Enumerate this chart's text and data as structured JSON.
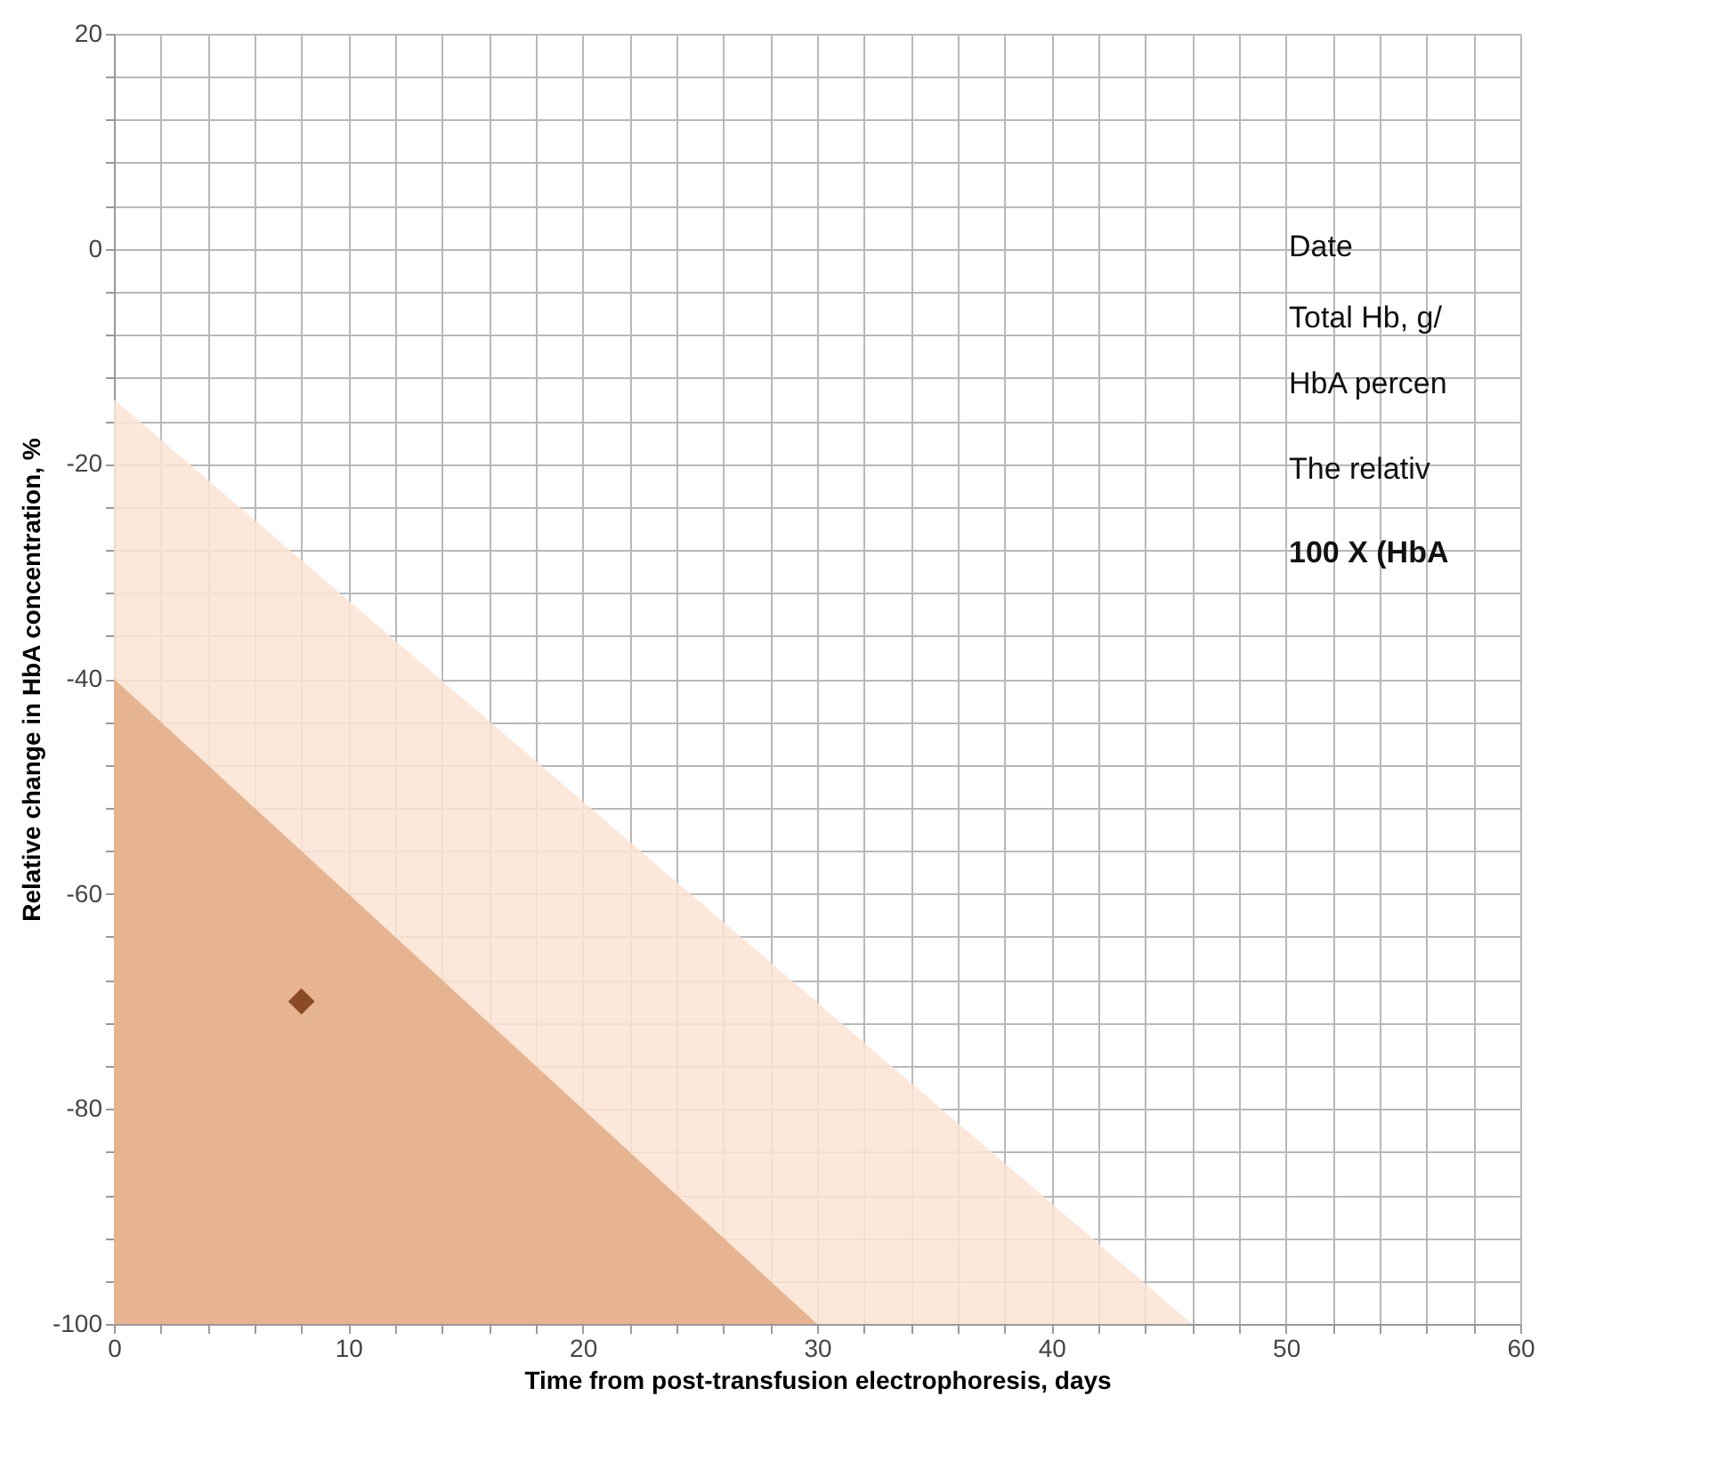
{
  "chart_data": {
    "type": "scatter",
    "xlabel": "Time from post-transfusion  electrophoresis, days",
    "ylabel": "Relative change in HbA concentration, %",
    "xlim": [
      0,
      60
    ],
    "ylim": [
      -100,
      20
    ],
    "xticks": [
      0,
      {
        "value": 2,
        "label": null
      },
      {
        "value": 4,
        "label": null
      },
      {
        "value": 6,
        "label": null
      },
      {
        "value": 8,
        "label": null
      },
      10,
      {
        "value": 12,
        "label": null
      },
      {
        "value": 14,
        "label": null
      },
      {
        "value": 16,
        "label": null
      },
      {
        "value": 18,
        "label": null
      },
      20,
      {
        "value": 22,
        "label": null
      },
      {
        "value": 24,
        "label": null
      },
      {
        "value": 26,
        "label": null
      },
      {
        "value": 28,
        "label": null
      },
      30,
      {
        "value": 32,
        "label": null
      },
      {
        "value": 34,
        "label": null
      },
      {
        "value": 36,
        "label": null
      },
      {
        "value": 38,
        "label": null
      },
      40,
      {
        "value": 42,
        "label": null
      },
      {
        "value": 44,
        "label": null
      },
      {
        "value": 46,
        "label": null
      },
      {
        "value": 48,
        "label": null
      },
      50,
      {
        "value": 52,
        "label": null
      },
      {
        "value": 54,
        "label": null
      },
      {
        "value": 56,
        "label": null
      },
      {
        "value": 58,
        "label": null
      },
      60
    ],
    "yticks": [
      -100,
      {
        "value": -96,
        "label": null
      },
      {
        "value": -92,
        "label": null
      },
      {
        "value": -88,
        "label": null
      },
      {
        "value": -84,
        "label": null
      },
      -80,
      {
        "value": -76,
        "label": null
      },
      {
        "value": -72,
        "label": null
      },
      {
        "value": -68,
        "label": null
      },
      {
        "value": -64,
        "label": null
      },
      -60,
      {
        "value": -56,
        "label": null
      },
      {
        "value": -52,
        "label": null
      },
      {
        "value": -48,
        "label": null
      },
      {
        "value": -44,
        "label": null
      },
      -40,
      {
        "value": -36,
        "label": null
      },
      {
        "value": -32,
        "label": null
      },
      {
        "value": -28,
        "label": null
      },
      {
        "value": -24,
        "label": null
      },
      -20,
      {
        "value": -16,
        "label": null
      },
      {
        "value": -12,
        "label": null
      },
      {
        "value": -8,
        "label": null
      },
      {
        "value": -4,
        "label": null
      },
      0,
      {
        "value": 4,
        "label": null
      },
      {
        "value": 8,
        "label": null
      },
      {
        "value": 12,
        "label": null
      },
      {
        "value": 16,
        "label": null
      },
      20
    ],
    "grid": true,
    "series": [
      {
        "type": "area",
        "color": "#fbe4d5",
        "x": [
          0,
          46
        ],
        "values": [
          -14,
          -100
        ]
      },
      {
        "type": "area",
        "color": "#e3aa84",
        "x": [
          0,
          30
        ],
        "values": [
          -40,
          -100
        ]
      },
      {
        "color": "#8b4a26",
        "marker": "diamond",
        "x": [
          8
        ],
        "values": [
          -70
        ]
      }
    ],
    "annotations": [
      "Date",
      "Total Hb, g/",
      "HbA percen",
      "The relativ",
      "100 X (HbA"
    ]
  }
}
